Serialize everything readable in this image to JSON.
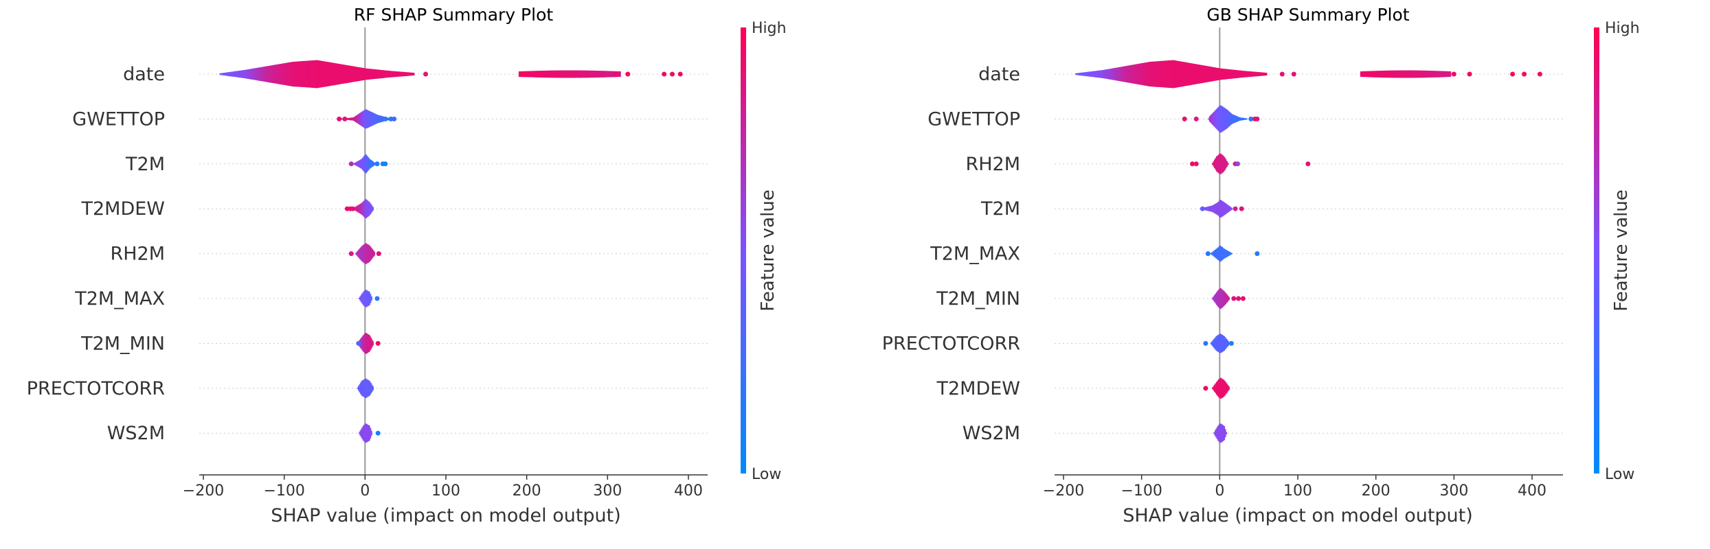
{
  "colors": {
    "low": "#008afb",
    "mid": "#7c52ff",
    "high": "#ff0052",
    "zero_line": "#999999",
    "row_guide": "#cccccc",
    "axis": "#333333"
  },
  "chart_data": [
    {
      "type": "scatter",
      "subtype": "shap-summary-violin",
      "title": "RF SHAP Summary Plot",
      "xlabel": "SHAP value (impact on model output)",
      "xlim": [
        -210,
        425
      ],
      "xticks": [
        -200,
        -100,
        0,
        100,
        200,
        300,
        400
      ],
      "colorbar": {
        "label": "Feature value",
        "high": "High",
        "low": "Low"
      },
      "features": [
        {
          "name": "date",
          "violin": [
            [
              -180,
              0.05,
              0.45
            ],
            [
              -150,
              0.25,
              0.55
            ],
            [
              -120,
              0.5,
              0.8
            ],
            [
              -90,
              0.75,
              0.9
            ],
            [
              -60,
              0.85,
              0.92
            ],
            [
              -30,
              0.6,
              0.92
            ],
            [
              0,
              0.35,
              0.92
            ],
            [
              30,
              0.2,
              0.92
            ],
            [
              60,
              0.08,
              0.92
            ]
          ],
          "tail": [
            [
              190,
              315,
              0.95,
              0.85
            ]
          ],
          "points": [
            [
              75,
              0.9
            ],
            [
              310,
              0.95
            ],
            [
              325,
              0.95
            ],
            [
              370,
              0.95
            ],
            [
              380,
              0.95
            ],
            [
              390,
              0.95
            ]
          ]
        },
        {
          "name": "GWETTOP",
          "violin": [
            [
              -30,
              0.02,
              0.9
            ],
            [
              -15,
              0.1,
              0.85
            ],
            [
              0,
              0.6,
              0.45
            ],
            [
              15,
              0.25,
              0.3
            ],
            [
              30,
              0.05,
              0.2
            ]
          ],
          "points": [
            [
              -32,
              0.9
            ],
            [
              -25,
              0.88
            ],
            [
              25,
              0.2
            ],
            [
              32,
              0.15
            ],
            [
              36,
              0.3
            ]
          ]
        },
        {
          "name": "T2M",
          "violin": [
            [
              -15,
              0.02,
              0.6
            ],
            [
              -5,
              0.3,
              0.5
            ],
            [
              0,
              0.6,
              0.4
            ],
            [
              5,
              0.3,
              0.25
            ],
            [
              12,
              0.05,
              0.15
            ]
          ],
          "points": [
            [
              -17,
              0.7
            ],
            [
              15,
              0.15
            ],
            [
              22,
              0.1
            ],
            [
              25,
              0.05
            ]
          ]
        },
        {
          "name": "T2MDEW",
          "violin": [
            [
              -15,
              0.05,
              0.9
            ],
            [
              -5,
              0.35,
              0.7
            ],
            [
              0,
              0.6,
              0.55
            ],
            [
              5,
              0.4,
              0.5
            ],
            [
              10,
              0.05,
              0.5
            ]
          ],
          "points": [
            [
              -22,
              0.95
            ],
            [
              -18,
              0.92
            ],
            [
              -15,
              0.9
            ]
          ]
        },
        {
          "name": "RH2M",
          "violin": [
            [
              -12,
              0.05,
              0.7
            ],
            [
              -5,
              0.45,
              0.7
            ],
            [
              0,
              0.65,
              0.75
            ],
            [
              5,
              0.5,
              0.78
            ],
            [
              12,
              0.05,
              0.8
            ]
          ],
          "points": [
            [
              -17,
              0.85
            ],
            [
              17,
              0.9
            ]
          ]
        },
        {
          "name": "T2M_MAX",
          "violin": [
            [
              -8,
              0.05,
              0.5
            ],
            [
              -3,
              0.4,
              0.45
            ],
            [
              0,
              0.55,
              0.45
            ],
            [
              5,
              0.4,
              0.4
            ],
            [
              8,
              0.05,
              0.35
            ]
          ],
          "points": [
            [
              15,
              0.15
            ]
          ]
        },
        {
          "name": "T2M_MIN",
          "violin": [
            [
              -10,
              0.05,
              0.6
            ],
            [
              -3,
              0.5,
              0.75
            ],
            [
              0,
              0.65,
              0.8
            ],
            [
              5,
              0.5,
              0.85
            ],
            [
              10,
              0.05,
              0.85
            ]
          ],
          "points": [
            [
              -8,
              0.3
            ],
            [
              16,
              0.95
            ]
          ]
        },
        {
          "name": "PRECTOTCORR",
          "violin": [
            [
              -10,
              0.05,
              0.4
            ],
            [
              -5,
              0.45,
              0.4
            ],
            [
              0,
              0.6,
              0.42
            ],
            [
              5,
              0.45,
              0.4
            ],
            [
              10,
              0.05,
              0.35
            ]
          ],
          "points": []
        },
        {
          "name": "WS2M",
          "violin": [
            [
              -8,
              0.05,
              0.55
            ],
            [
              -3,
              0.45,
              0.55
            ],
            [
              0,
              0.6,
              0.55
            ],
            [
              5,
              0.45,
              0.55
            ],
            [
              8,
              0.05,
              0.55
            ]
          ],
          "points": [
            [
              16,
              0.1
            ]
          ]
        }
      ]
    },
    {
      "type": "scatter",
      "subtype": "shap-summary-violin",
      "title": "GB SHAP Summary Plot",
      "xlabel": "SHAP value (impact on model output)",
      "xlim": [
        -210,
        440
      ],
      "xticks": [
        -200,
        -100,
        0,
        100,
        200,
        300,
        400
      ],
      "colorbar": {
        "label": "Feature value",
        "high": "High",
        "low": "Low"
      },
      "features": [
        {
          "name": "date",
          "violin": [
            [
              -185,
              0.05,
              0.45
            ],
            [
              -150,
              0.25,
              0.55
            ],
            [
              -120,
              0.5,
              0.8
            ],
            [
              -90,
              0.75,
              0.9
            ],
            [
              -60,
              0.85,
              0.92
            ],
            [
              -30,
              0.6,
              0.92
            ],
            [
              0,
              0.35,
              0.92
            ],
            [
              30,
              0.2,
              0.92
            ],
            [
              60,
              0.08,
              0.92
            ]
          ],
          "tail": [
            [
              180,
              295,
              0.95,
              0.85
            ]
          ],
          "points": [
            [
              80,
              0.9
            ],
            [
              95,
              0.9
            ],
            [
              300,
              0.95
            ],
            [
              320,
              0.95
            ],
            [
              375,
              0.95
            ],
            [
              390,
              0.95
            ],
            [
              410,
              0.95
            ]
          ]
        },
        {
          "name": "GWETTOP",
          "violin": [
            [
              -15,
              0.1,
              0.7
            ],
            [
              -5,
              0.6,
              0.5
            ],
            [
              0,
              0.85,
              0.45
            ],
            [
              8,
              0.6,
              0.4
            ],
            [
              15,
              0.3,
              0.3
            ],
            [
              25,
              0.1,
              0.2
            ],
            [
              35,
              0.03,
              0.15
            ]
          ],
          "points": [
            [
              -45,
              0.9
            ],
            [
              -30,
              0.85
            ],
            [
              40,
              0.15
            ],
            [
              45,
              0.9
            ],
            [
              48,
              0.9
            ]
          ]
        },
        {
          "name": "RH2M",
          "violin": [
            [
              -10,
              0.05,
              0.9
            ],
            [
              -5,
              0.45,
              0.85
            ],
            [
              0,
              0.65,
              0.85
            ],
            [
              5,
              0.45,
              0.85
            ],
            [
              10,
              0.05,
              0.85
            ]
          ],
          "points": [
            [
              -35,
              0.95
            ],
            [
              -30,
              0.9
            ],
            [
              20,
              0.85
            ],
            [
              23,
              0.6
            ],
            [
              113,
              0.9
            ]
          ]
        },
        {
          "name": "T2M",
          "violin": [
            [
              -25,
              0.03,
              0.45
            ],
            [
              -10,
              0.2,
              0.55
            ],
            [
              -3,
              0.4,
              0.55
            ],
            [
              0,
              0.55,
              0.55
            ],
            [
              5,
              0.4,
              0.55
            ],
            [
              15,
              0.05,
              0.55
            ]
          ],
          "points": [
            [
              -22,
              0.4
            ],
            [
              20,
              0.8
            ],
            [
              28,
              0.9
            ]
          ]
        },
        {
          "name": "T2M_MAX",
          "violin": [
            [
              -12,
              0.03,
              0.2
            ],
            [
              -5,
              0.3,
              0.25
            ],
            [
              0,
              0.5,
              0.25
            ],
            [
              5,
              0.3,
              0.25
            ],
            [
              15,
              0.03,
              0.2
            ]
          ],
          "points": [
            [
              -15,
              0.15
            ],
            [
              48,
              0.15
            ]
          ]
        },
        {
          "name": "T2M_MIN",
          "violin": [
            [
              -10,
              0.05,
              0.65
            ],
            [
              -3,
              0.5,
              0.7
            ],
            [
              0,
              0.65,
              0.7
            ],
            [
              5,
              0.45,
              0.75
            ],
            [
              12,
              0.05,
              0.8
            ]
          ],
          "points": [
            [
              18,
              0.9
            ],
            [
              24,
              0.9
            ],
            [
              30,
              0.92
            ]
          ]
        },
        {
          "name": "PRECTOTCORR",
          "violin": [
            [
              -12,
              0.05,
              0.3
            ],
            [
              -5,
              0.45,
              0.35
            ],
            [
              0,
              0.6,
              0.35
            ],
            [
              5,
              0.45,
              0.35
            ],
            [
              12,
              0.05,
              0.3
            ]
          ],
          "points": [
            [
              -18,
              0.2
            ],
            [
              15,
              0.1
            ]
          ]
        },
        {
          "name": "T2MDEW",
          "violin": [
            [
              -10,
              0.05,
              0.9
            ],
            [
              -3,
              0.5,
              0.92
            ],
            [
              0,
              0.65,
              0.92
            ],
            [
              5,
              0.5,
              0.92
            ],
            [
              12,
              0.05,
              0.92
            ]
          ],
          "points": [
            [
              -18,
              0.95
            ]
          ]
        },
        {
          "name": "WS2M",
          "violin": [
            [
              -8,
              0.05,
              0.55
            ],
            [
              -3,
              0.45,
              0.55
            ],
            [
              0,
              0.6,
              0.55
            ],
            [
              5,
              0.45,
              0.55
            ],
            [
              8,
              0.05,
              0.55
            ]
          ],
          "points": []
        }
      ]
    }
  ]
}
